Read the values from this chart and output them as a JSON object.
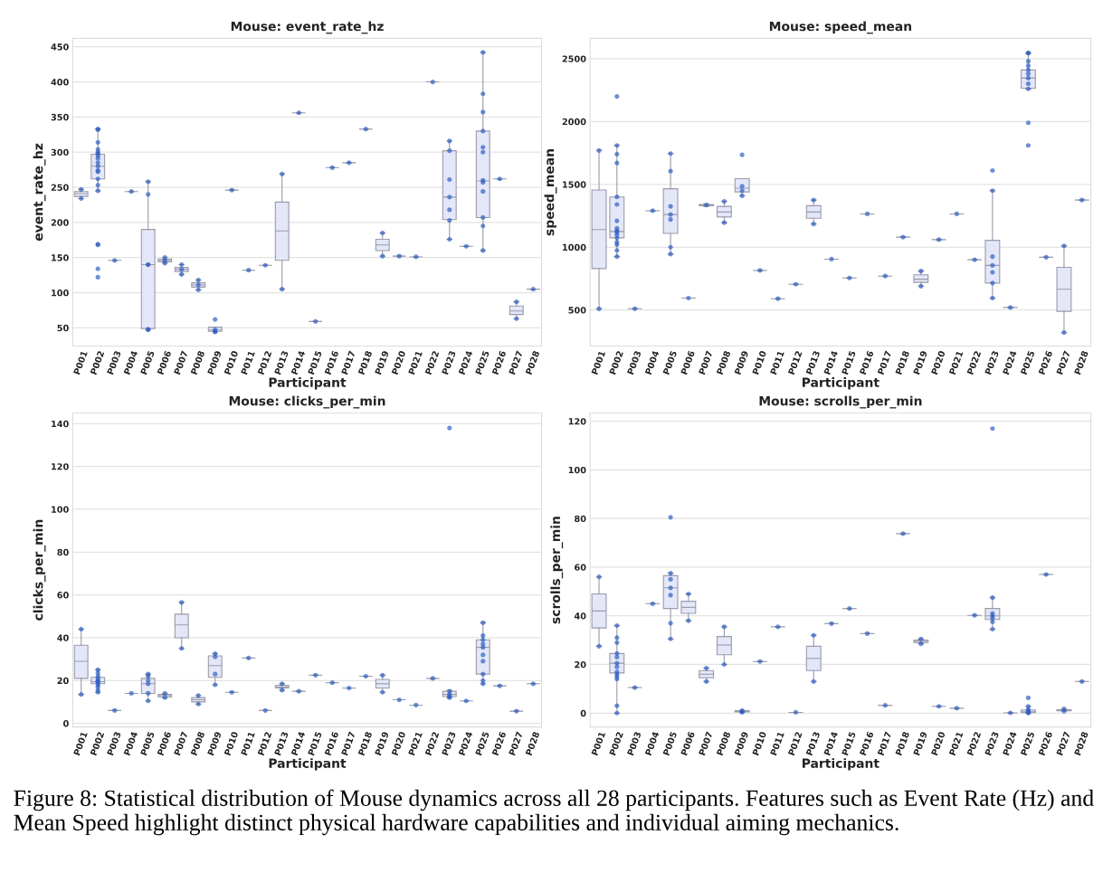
{
  "chart_data": [
    {
      "type": "box",
      "title": "Mouse: event_rate_hz",
      "xlabel": "Participant",
      "ylabel": "event_rate_hz",
      "grid": "y",
      "legend": false,
      "ylim": [
        24,
        462
      ],
      "yticks": [
        50,
        100,
        150,
        200,
        250,
        300,
        350,
        400,
        450
      ],
      "categories": [
        "P001",
        "P002",
        "P003",
        "P004",
        "P005",
        "P006",
        "P007",
        "P008",
        "P009",
        "P010",
        "P011",
        "P012",
        "P013",
        "P014",
        "P015",
        "P016",
        "P017",
        "P018",
        "P019",
        "P020",
        "P021",
        "P022",
        "P023",
        "P024",
        "P025",
        "P026",
        "P027",
        "P028"
      ],
      "series": [
        {
          "type": "box",
          "color": "#e3e7f8",
          "boxes": [
            {
              "low": 234,
              "q1": 237,
              "median": 241,
              "q3": 244,
              "high": 247
            },
            {
              "low": 245,
              "q1": 262,
              "median": 280,
              "q3": 297,
              "high": 333
            },
            {
              "low": 146,
              "q1": 146,
              "median": 146,
              "q3": 146,
              "high": 146
            },
            {
              "low": 244,
              "q1": 244,
              "median": 244,
              "q3": 244,
              "high": 244
            },
            {
              "low": 47,
              "q1": 49,
              "median": 140,
              "q3": 190,
              "high": 258
            },
            {
              "low": 142,
              "q1": 144,
              "median": 146,
              "q3": 148,
              "high": 150
            },
            {
              "low": 126,
              "q1": 130,
              "median": 133,
              "q3": 136,
              "high": 140
            },
            {
              "low": 104,
              "q1": 108,
              "median": 111,
              "q3": 114,
              "high": 118
            },
            {
              "low": 44,
              "q1": 45,
              "median": 47,
              "q3": 51,
              "high": 51
            },
            {
              "low": 246,
              "q1": 246,
              "median": 246,
              "q3": 246,
              "high": 246
            },
            {
              "low": 132,
              "q1": 132,
              "median": 132,
              "q3": 132,
              "high": 132
            },
            {
              "low": 139,
              "q1": 139,
              "median": 139,
              "q3": 139,
              "high": 139
            },
            {
              "low": 105,
              "q1": 146,
              "median": 188,
              "q3": 229,
              "high": 269
            },
            {
              "low": 356,
              "q1": 356,
              "median": 356,
              "q3": 356,
              "high": 356
            },
            {
              "low": 59,
              "q1": 59,
              "median": 59,
              "q3": 59,
              "high": 59
            },
            {
              "low": 278,
              "q1": 278,
              "median": 278,
              "q3": 278,
              "high": 278
            },
            {
              "low": 285,
              "q1": 285,
              "median": 285,
              "q3": 285,
              "high": 285
            },
            {
              "low": 333,
              "q1": 333,
              "median": 333,
              "q3": 333,
              "high": 333
            },
            {
              "low": 152,
              "q1": 160,
              "median": 168,
              "q3": 176,
              "high": 185
            },
            {
              "low": 152,
              "q1": 152,
              "median": 152,
              "q3": 152,
              "high": 152
            },
            {
              "low": 151,
              "q1": 151,
              "median": 151,
              "q3": 151,
              "high": 151
            },
            {
              "low": 400,
              "q1": 400,
              "median": 400,
              "q3": 400,
              "high": 400
            },
            {
              "low": 176,
              "q1": 204,
              "median": 236,
              "q3": 302,
              "high": 316
            },
            {
              "low": 166,
              "q1": 166,
              "median": 166,
              "q3": 166,
              "high": 166
            },
            {
              "low": 160,
              "q1": 207,
              "median": 259,
              "q3": 330,
              "high": 442
            },
            {
              "low": 262,
              "q1": 262,
              "median": 262,
              "q3": 262,
              "high": 262
            },
            {
              "low": 63,
              "q1": 69,
              "median": 74,
              "q3": 81,
              "high": 87
            },
            {
              "low": 105,
              "q1": 105,
              "median": 105,
              "q3": 105,
              "high": 105
            }
          ]
        },
        {
          "type": "scatter",
          "color": "#2f5fc0",
          "marker": "circle",
          "x": [
            "P001",
            "P001",
            "P002",
            "P002",
            "P002",
            "P002",
            "P002",
            "P002",
            "P002",
            "P002",
            "P002",
            "P002",
            "P002",
            "P002",
            "P002",
            "P002",
            "P002",
            "P002",
            "P002",
            "P002",
            "P002",
            "P003",
            "P004",
            "P005",
            "P005",
            "P005",
            "P005",
            "P005",
            "P005",
            "P006",
            "P006",
            "P006",
            "P007",
            "P007",
            "P007",
            "P008",
            "P008",
            "P008",
            "P009",
            "P009",
            "P009",
            "P009",
            "P010",
            "P011",
            "P012",
            "P013",
            "P013",
            "P014",
            "P015",
            "P016",
            "P017",
            "P018",
            "P019",
            "P019",
            "P020",
            "P021",
            "P022",
            "P023",
            "P023",
            "P023",
            "P023",
            "P023",
            "P023",
            "P023",
            "P024",
            "P025",
            "P025",
            "P025",
            "P025",
            "P025",
            "P025",
            "P025",
            "P025",
            "P025",
            "P025",
            "P025",
            "P025",
            "P026",
            "P027",
            "P027",
            "P028"
          ],
          "values": [
            234,
            247,
            122,
            134,
            168,
            169,
            245,
            253,
            262,
            272,
            274,
            280,
            285,
            291,
            295,
            298,
            300,
            304,
            314,
            332,
            333,
            146,
            244,
            47,
            48,
            140,
            140,
            240,
            258,
            142,
            146,
            150,
            126,
            133,
            140,
            104,
            111,
            118,
            44,
            45,
            47,
            62,
            246,
            132,
            139,
            105,
            269,
            356,
            59,
            278,
            285,
            333,
            152,
            185,
            152,
            151,
            400,
            176,
            203,
            218,
            236,
            261,
            302,
            316,
            166,
            160,
            195,
            207,
            244,
            257,
            260,
            300,
            307,
            330,
            357,
            383,
            442,
            262,
            63,
            87,
            105
          ]
        }
      ]
    },
    {
      "type": "box",
      "title": "Mouse: speed_mean",
      "xlabel": "Participant",
      "ylabel": "speed_mean",
      "grid": "y",
      "legend": false,
      "ylim": [
        213,
        2662
      ],
      "yticks": [
        500,
        1000,
        1500,
        2000,
        2500
      ],
      "categories": [
        "P001",
        "P002",
        "P003",
        "P004",
        "P005",
        "P006",
        "P007",
        "P008",
        "P009",
        "P010",
        "P011",
        "P012",
        "P013",
        "P014",
        "P015",
        "P016",
        "P017",
        "P018",
        "P019",
        "P020",
        "P021",
        "P022",
        "P023",
        "P024",
        "P025",
        "P026",
        "P027",
        "P028"
      ],
      "series": [
        {
          "type": "box",
          "color": "#e3e7f8",
          "boxes": [
            {
              "low": 510,
              "q1": 830,
              "median": 1140,
              "q3": 1455,
              "high": 1770
            },
            {
              "low": 925,
              "q1": 1075,
              "median": 1125,
              "q3": 1400,
              "high": 1810
            },
            {
              "low": 510,
              "q1": 510,
              "median": 510,
              "q3": 510,
              "high": 510
            },
            {
              "low": 1290,
              "q1": 1290,
              "median": 1290,
              "q3": 1290,
              "high": 1290
            },
            {
              "low": 945,
              "q1": 1110,
              "median": 1260,
              "q3": 1465,
              "high": 1745
            },
            {
              "low": 595,
              "q1": 595,
              "median": 595,
              "q3": 595,
              "high": 595
            },
            {
              "low": 1325,
              "q1": 1330,
              "median": 1335,
              "q3": 1340,
              "high": 1345
            },
            {
              "low": 1195,
              "q1": 1240,
              "median": 1280,
              "q3": 1325,
              "high": 1365
            },
            {
              "low": 1410,
              "q1": 1440,
              "median": 1470,
              "q3": 1545,
              "high": 1545
            },
            {
              "low": 815,
              "q1": 815,
              "median": 815,
              "q3": 815,
              "high": 815
            },
            {
              "low": 590,
              "q1": 590,
              "median": 590,
              "q3": 590,
              "high": 590
            },
            {
              "low": 705,
              "q1": 705,
              "median": 705,
              "q3": 705,
              "high": 705
            },
            {
              "low": 1185,
              "q1": 1230,
              "median": 1280,
              "q3": 1330,
              "high": 1375
            },
            {
              "low": 905,
              "q1": 905,
              "median": 905,
              "q3": 905,
              "high": 905
            },
            {
              "low": 755,
              "q1": 755,
              "median": 755,
              "q3": 755,
              "high": 755
            },
            {
              "low": 1265,
              "q1": 1265,
              "median": 1265,
              "q3": 1265,
              "high": 1265
            },
            {
              "low": 770,
              "q1": 770,
              "median": 770,
              "q3": 770,
              "high": 770
            },
            {
              "low": 1080,
              "q1": 1080,
              "median": 1080,
              "q3": 1080,
              "high": 1080
            },
            {
              "low": 690,
              "q1": 720,
              "median": 745,
              "q3": 780,
              "high": 810
            },
            {
              "low": 1060,
              "q1": 1060,
              "median": 1060,
              "q3": 1060,
              "high": 1060
            },
            {
              "low": 1265,
              "q1": 1265,
              "median": 1265,
              "q3": 1265,
              "high": 1265
            },
            {
              "low": 900,
              "q1": 900,
              "median": 900,
              "q3": 900,
              "high": 900
            },
            {
              "low": 595,
              "q1": 715,
              "median": 855,
              "q3": 1055,
              "high": 1450
            },
            {
              "low": 520,
              "q1": 520,
              "median": 520,
              "q3": 520,
              "high": 520
            },
            {
              "low": 2260,
              "q1": 2265,
              "median": 2345,
              "q3": 2410,
              "high": 2545
            },
            {
              "low": 920,
              "q1": 920,
              "median": 920,
              "q3": 920,
              "high": 920
            },
            {
              "low": 320,
              "q1": 490,
              "median": 665,
              "q3": 840,
              "high": 1010
            },
            {
              "low": 1375,
              "q1": 1375,
              "median": 1375,
              "q3": 1375,
              "high": 1375
            }
          ]
        },
        {
          "type": "scatter",
          "color": "#2f5fc0",
          "marker": "circle",
          "x": [
            "P001",
            "P001",
            "P002",
            "P002",
            "P002",
            "P002",
            "P002",
            "P002",
            "P002",
            "P002",
            "P002",
            "P002",
            "P002",
            "P002",
            "P002",
            "P002",
            "P002",
            "P002",
            "P003",
            "P004",
            "P005",
            "P005",
            "P005",
            "P005",
            "P005",
            "P005",
            "P005",
            "P006",
            "P007",
            "P008",
            "P008",
            "P009",
            "P009",
            "P009",
            "P009",
            "P010",
            "P011",
            "P012",
            "P013",
            "P013",
            "P014",
            "P015",
            "P016",
            "P017",
            "P018",
            "P019",
            "P019",
            "P020",
            "P021",
            "P022",
            "P023",
            "P023",
            "P023",
            "P023",
            "P023",
            "P023",
            "P023",
            "P024",
            "P025",
            "P025",
            "P025",
            "P025",
            "P025",
            "P025",
            "P025",
            "P025",
            "P025",
            "P025",
            "P025",
            "P026",
            "P027",
            "P027",
            "P028"
          ],
          "values": [
            510,
            1770,
            925,
            975,
            1020,
            1040,
            1075,
            1100,
            1120,
            1130,
            1150,
            1210,
            1340,
            1400,
            1670,
            1740,
            1810,
            2200,
            510,
            1290,
            945,
            1000,
            1220,
            1260,
            1325,
            1605,
            1745,
            595,
            1335,
            1195,
            1365,
            1410,
            1450,
            1485,
            1735,
            815,
            590,
            705,
            1185,
            1375,
            905,
            755,
            1265,
            770,
            1080,
            690,
            810,
            1060,
            1265,
            900,
            595,
            715,
            800,
            855,
            925,
            1450,
            1610,
            520,
            1810,
            1990,
            2260,
            2300,
            2345,
            2380,
            2410,
            2445,
            2480,
            2545,
            2545,
            920,
            320,
            1010,
            1375
          ]
        }
      ]
    },
    {
      "type": "box",
      "title": "Mouse: clicks_per_min",
      "xlabel": "Participant",
      "ylabel": "clicks_per_min",
      "grid": "y",
      "legend": false,
      "ylim": [
        -1.7,
        145
      ],
      "yticks": [
        0,
        20,
        40,
        60,
        80,
        100,
        120,
        140
      ],
      "categories": [
        "P001",
        "P002",
        "P003",
        "P004",
        "P005",
        "P006",
        "P007",
        "P008",
        "P009",
        "P010",
        "P011",
        "P012",
        "P013",
        "P014",
        "P015",
        "P016",
        "P017",
        "P018",
        "P019",
        "P020",
        "P021",
        "P022",
        "P023",
        "P024",
        "P025",
        "P026",
        "P027",
        "P028"
      ],
      "series": [
        {
          "type": "box",
          "color": "#e3e7f8",
          "boxes": [
            {
              "low": 13.5,
              "q1": 21,
              "median": 29,
              "q3": 36.5,
              "high": 44
            },
            {
              "low": 14.5,
              "q1": 18.5,
              "median": 19.5,
              "q3": 21.5,
              "high": 25
            },
            {
              "low": 6,
              "q1": 6,
              "median": 6,
              "q3": 6,
              "high": 6
            },
            {
              "low": 14,
              "q1": 14,
              "median": 14,
              "q3": 14,
              "high": 14
            },
            {
              "low": 10.5,
              "q1": 14,
              "median": 18.5,
              "q3": 21,
              "high": 23
            },
            {
              "low": 12,
              "q1": 12.3,
              "median": 13,
              "q3": 13.5,
              "high": 14
            },
            {
              "low": 35,
              "q1": 40,
              "median": 46,
              "q3": 51,
              "high": 56.5
            },
            {
              "low": 9,
              "q1": 10,
              "median": 11,
              "q3": 12,
              "high": 13
            },
            {
              "low": 18,
              "q1": 21.5,
              "median": 27,
              "q3": 31.5,
              "high": 32.5
            },
            {
              "low": 14.5,
              "q1": 14.5,
              "median": 14.5,
              "q3": 14.5,
              "high": 14.5
            },
            {
              "low": 30.5,
              "q1": 30.5,
              "median": 30.5,
              "q3": 30.5,
              "high": 30.5
            },
            {
              "low": 6,
              "q1": 6,
              "median": 6,
              "q3": 6,
              "high": 6
            },
            {
              "low": 15.5,
              "q1": 16.5,
              "median": 17,
              "q3": 17.8,
              "high": 18.5
            },
            {
              "low": 15,
              "q1": 15,
              "median": 15,
              "q3": 15,
              "high": 15
            },
            {
              "low": 22.5,
              "q1": 22.5,
              "median": 22.5,
              "q3": 22.5,
              "high": 22.5
            },
            {
              "low": 19,
              "q1": 19,
              "median": 19,
              "q3": 19,
              "high": 19
            },
            {
              "low": 16.5,
              "q1": 16.5,
              "median": 16.5,
              "q3": 16.5,
              "high": 16.5
            },
            {
              "low": 22,
              "q1": 22,
              "median": 22,
              "q3": 22,
              "high": 22
            },
            {
              "low": 14.5,
              "q1": 16.5,
              "median": 18.5,
              "q3": 20.5,
              "high": 22.5
            },
            {
              "low": 11,
              "q1": 11,
              "median": 11,
              "q3": 11,
              "high": 11
            },
            {
              "low": 8.5,
              "q1": 8.5,
              "median": 8.5,
              "q3": 8.5,
              "high": 8.5
            },
            {
              "low": 21,
              "q1": 21,
              "median": 21,
              "q3": 21,
              "high": 21
            },
            {
              "low": 12,
              "q1": 12.5,
              "median": 13.5,
              "q3": 15,
              "high": 15.5
            },
            {
              "low": 10.5,
              "q1": 10.5,
              "median": 10.5,
              "q3": 10.5,
              "high": 10.5
            },
            {
              "low": 18.5,
              "q1": 23,
              "median": 35.5,
              "q3": 39,
              "high": 47
            },
            {
              "low": 17.5,
              "q1": 17.5,
              "median": 17.5,
              "q3": 17.5,
              "high": 17.5
            },
            {
              "low": 5.7,
              "q1": 5.7,
              "median": 5.7,
              "q3": 5.7,
              "high": 5.7
            },
            {
              "low": 18.5,
              "q1": 18.5,
              "median": 18.5,
              "q3": 18.5,
              "high": 18.5
            }
          ]
        },
        {
          "type": "scatter",
          "color": "#2f5fc0",
          "marker": "circle",
          "x": [
            "P001",
            "P001",
            "P002",
            "P002",
            "P002",
            "P002",
            "P002",
            "P002",
            "P002",
            "P002",
            "P002",
            "P002",
            "P002",
            "P003",
            "P004",
            "P005",
            "P005",
            "P005",
            "P005",
            "P005",
            "P005",
            "P006",
            "P006",
            "P007",
            "P007",
            "P008",
            "P008",
            "P009",
            "P009",
            "P009",
            "P009",
            "P010",
            "P011",
            "P012",
            "P013",
            "P013",
            "P014",
            "P015",
            "P016",
            "P017",
            "P018",
            "P019",
            "P019",
            "P020",
            "P021",
            "P022",
            "P023",
            "P023",
            "P023",
            "P023",
            "P023",
            "P024",
            "P025",
            "P025",
            "P025",
            "P025",
            "P025",
            "P025",
            "P025",
            "P025",
            "P025",
            "P025",
            "P026",
            "P027",
            "P028"
          ],
          "values": [
            13.5,
            44,
            14.5,
            15.5,
            17,
            18,
            19,
            19.5,
            20,
            21,
            22,
            23.5,
            25,
            6,
            14,
            10.5,
            14,
            18.5,
            20,
            22,
            23,
            12,
            14,
            35,
            56.5,
            9,
            13,
            18,
            23,
            31,
            32.5,
            14.5,
            30.5,
            6,
            15.5,
            18.5,
            15,
            22.5,
            19,
            16.5,
            22,
            14.5,
            22.5,
            11,
            8.5,
            21,
            12,
            12.5,
            13.5,
            15,
            138,
            10.5,
            18.5,
            20,
            23,
            29,
            32,
            35.5,
            37,
            39,
            41,
            47,
            17.5,
            5.7,
            18.5
          ]
        }
      ]
    },
    {
      "type": "box",
      "title": "Mouse: scrolls_per_min",
      "xlabel": "Participant",
      "ylabel": "scrolls_per_min",
      "grid": "y",
      "legend": false,
      "ylim": [
        -5.7,
        123.4
      ],
      "yticks": [
        0,
        20,
        40,
        60,
        80,
        100,
        120
      ],
      "categories": [
        "P001",
        "P002",
        "P003",
        "P004",
        "P005",
        "P006",
        "P007",
        "P008",
        "P009",
        "P010",
        "P011",
        "P012",
        "P013",
        "P014",
        "P015",
        "P016",
        "P017",
        "P018",
        "P019",
        "P020",
        "P021",
        "P022",
        "P023",
        "P024",
        "P025",
        "P026",
        "P027",
        "P028"
      ],
      "annotations": [
        "Figure 8: Statistical distribution of Mouse dynamics across all 28 participants. Features such as Event Rate (Hz) and Mean Speed highlight distinct physical hardware capabilities and individual aiming mechanics."
      ],
      "series": [
        {
          "type": "box",
          "color": "#e3e7f8",
          "boxes": [
            {
              "low": 27.5,
              "q1": 35,
              "median": 42,
              "q3": 49,
              "high": 56
            },
            {
              "low": 0,
              "q1": 16.5,
              "median": 20.5,
              "q3": 24.5,
              "high": 36
            },
            {
              "low": 10.5,
              "q1": 10.5,
              "median": 10.5,
              "q3": 10.5,
              "high": 10.5
            },
            {
              "low": 45,
              "q1": 45,
              "median": 45,
              "q3": 45,
              "high": 45
            },
            {
              "low": 30.5,
              "q1": 43,
              "median": 51.5,
              "q3": 56.5,
              "high": 57.5
            },
            {
              "low": 38,
              "q1": 41,
              "median": 43.5,
              "q3": 46,
              "high": 49
            },
            {
              "low": 13,
              "q1": 14.5,
              "median": 16,
              "q3": 17.5,
              "high": 18.5
            },
            {
              "low": 20,
              "q1": 24,
              "median": 28,
              "q3": 31.5,
              "high": 35.5
            },
            {
              "low": 0.3,
              "q1": 0.5,
              "median": 0.7,
              "q3": 1,
              "high": 1.1
            },
            {
              "low": 21.2,
              "q1": 21.2,
              "median": 21.2,
              "q3": 21.2,
              "high": 21.2
            },
            {
              "low": 35.5,
              "q1": 35.5,
              "median": 35.5,
              "q3": 35.5,
              "high": 35.5
            },
            {
              "low": 0.3,
              "q1": 0.3,
              "median": 0.3,
              "q3": 0.3,
              "high": 0.3
            },
            {
              "low": 13,
              "q1": 17.5,
              "median": 22.5,
              "q3": 27.5,
              "high": 32
            },
            {
              "low": 36.8,
              "q1": 36.8,
              "median": 36.8,
              "q3": 36.8,
              "high": 36.8
            },
            {
              "low": 43,
              "q1": 43,
              "median": 43,
              "q3": 43,
              "high": 43
            },
            {
              "low": 32.7,
              "q1": 32.7,
              "median": 32.7,
              "q3": 32.7,
              "high": 32.7
            },
            {
              "low": 3.2,
              "q1": 3.2,
              "median": 3.2,
              "q3": 3.2,
              "high": 3.2
            },
            {
              "low": 73.8,
              "q1": 73.8,
              "median": 73.8,
              "q3": 73.8,
              "high": 73.8
            },
            {
              "low": 28.5,
              "q1": 29,
              "median": 29.5,
              "q3": 30,
              "high": 30.5
            },
            {
              "low": 2.8,
              "q1": 2.8,
              "median": 2.8,
              "q3": 2.8,
              "high": 2.8
            },
            {
              "low": 2,
              "q1": 2,
              "median": 2,
              "q3": 2,
              "high": 2
            },
            {
              "low": 40.2,
              "q1": 40.2,
              "median": 40.2,
              "q3": 40.2,
              "high": 40.2
            },
            {
              "low": 34.5,
              "q1": 38.5,
              "median": 40,
              "q3": 43,
              "high": 47.5
            },
            {
              "low": 0.1,
              "q1": 0.1,
              "median": 0.1,
              "q3": 0.1,
              "high": 0.1
            },
            {
              "low": 0,
              "q1": 0.2,
              "median": 0.5,
              "q3": 1.3,
              "high": 2.8
            },
            {
              "low": 57,
              "q1": 57,
              "median": 57,
              "q3": 57,
              "high": 57
            },
            {
              "low": 0.8,
              "q1": 1,
              "median": 1.2,
              "q3": 1.4,
              "high": 1.7
            },
            {
              "low": 13,
              "q1": 13,
              "median": 13,
              "q3": 13,
              "high": 13
            }
          ]
        },
        {
          "type": "scatter",
          "color": "#2f5fc0",
          "marker": "circle",
          "x": [
            "P001",
            "P001",
            "P002",
            "P002",
            "P002",
            "P002",
            "P002",
            "P002",
            "P002",
            "P002",
            "P002",
            "P002",
            "P002",
            "P002",
            "P002",
            "P003",
            "P004",
            "P005",
            "P005",
            "P005",
            "P005",
            "P005",
            "P005",
            "P005",
            "P006",
            "P006",
            "P007",
            "P007",
            "P008",
            "P008",
            "P009",
            "P009",
            "P009",
            "P010",
            "P011",
            "P012",
            "P013",
            "P013",
            "P014",
            "P015",
            "P016",
            "P017",
            "P018",
            "P019",
            "P019",
            "P020",
            "P021",
            "P022",
            "P023",
            "P023",
            "P023",
            "P023",
            "P023",
            "P023",
            "P023",
            "P024",
            "P025",
            "P025",
            "P025",
            "P025",
            "P025",
            "P025",
            "P025",
            "P026",
            "P027",
            "P027",
            "P028"
          ],
          "values": [
            27.5,
            56,
            0,
            3,
            14,
            15,
            16,
            17,
            19,
            20.5,
            23,
            24.5,
            29,
            31,
            36,
            10.5,
            45,
            30.5,
            37,
            48.5,
            51.5,
            55,
            57.5,
            80.5,
            38,
            49,
            13,
            18.5,
            20,
            35.5,
            0.3,
            0.7,
            1,
            21.2,
            35.5,
            0.3,
            13,
            32,
            36.8,
            43,
            32.7,
            3.2,
            73.8,
            28.5,
            30.5,
            2.8,
            2,
            40.2,
            34.5,
            37.5,
            39,
            40,
            41,
            47.5,
            117,
            0.1,
            0,
            0.2,
            0.5,
            1,
            1.5,
            2.8,
            6.3,
            57,
            0.8,
            1.7,
            13
          ]
        }
      ]
    }
  ]
}
